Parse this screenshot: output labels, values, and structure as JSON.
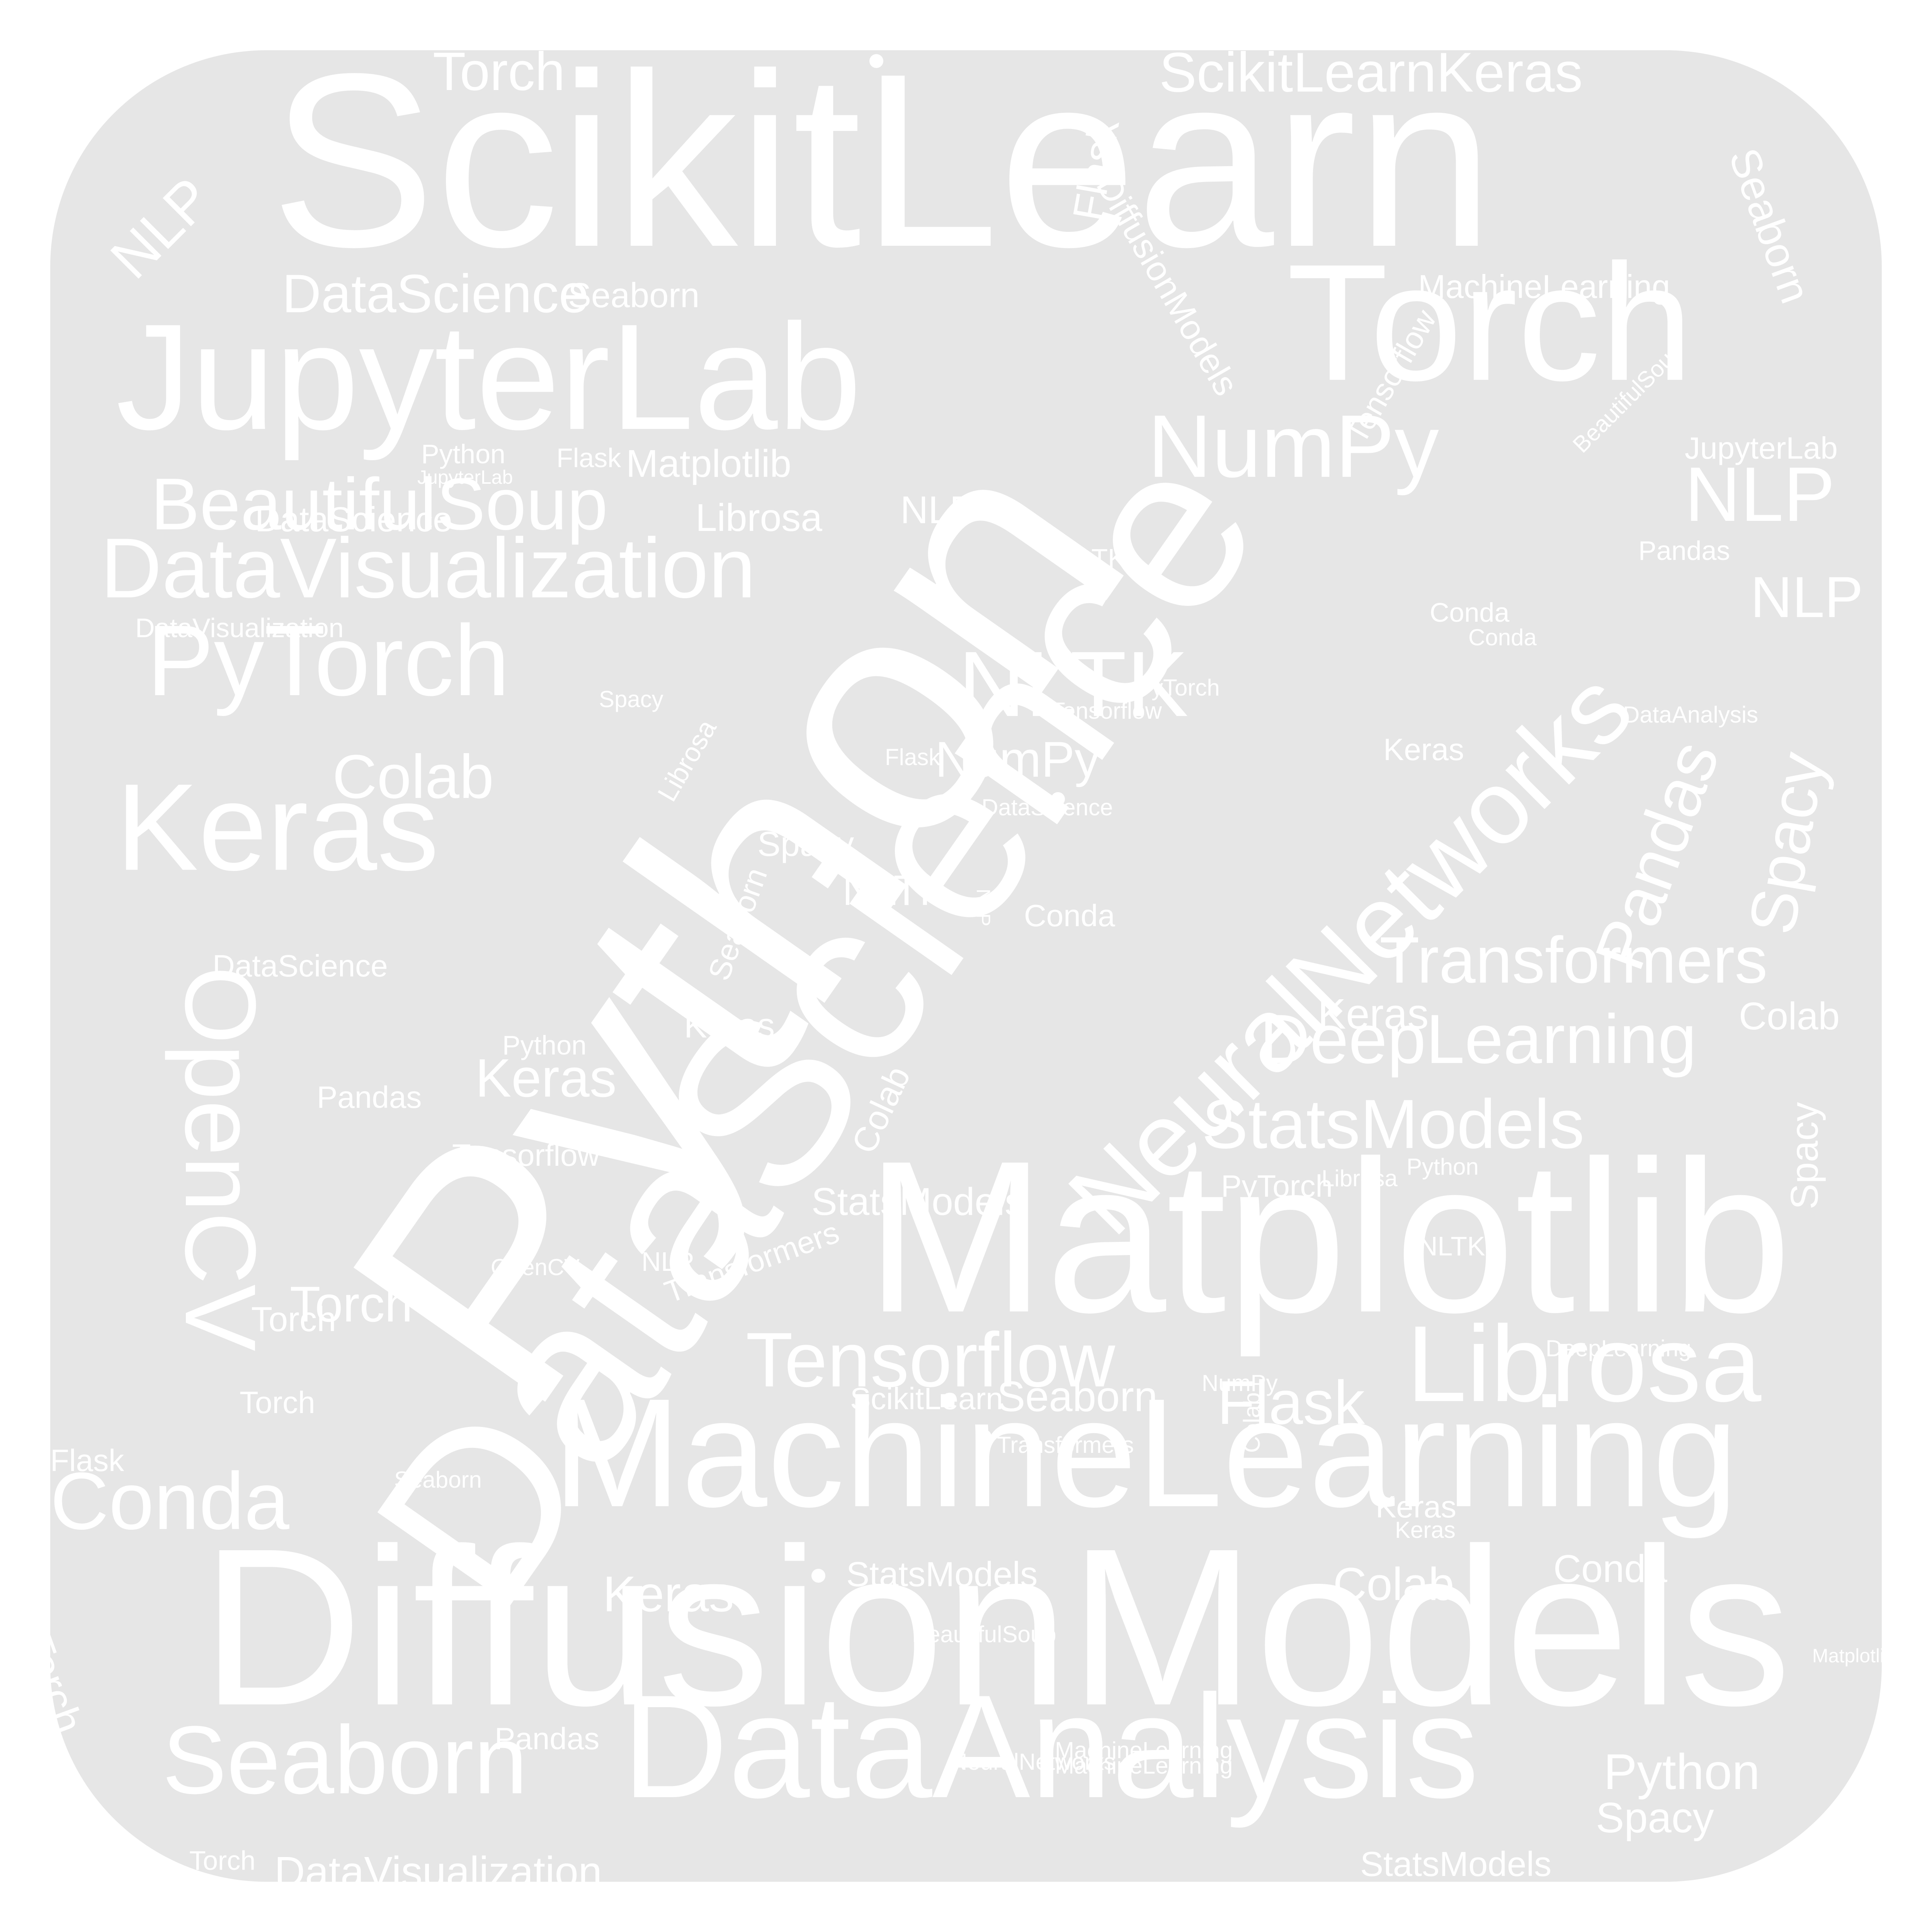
{
  "background_color": "#e6e6e6",
  "text_color": "#ffffff",
  "words": [
    "ScikitLearn",
    "Python",
    "DataScience",
    "DiffusionModels",
    "Matplotlib",
    "MachineLearning",
    "DataAnalysis",
    "Torch",
    "JupyterLab",
    "NeuralNetworks",
    "Keras",
    "PyTorch",
    "OpenCV",
    "DataVisualization",
    "BeautifulSoup",
    "Librosa",
    "Seaborn",
    "Conda",
    "Tensorflow",
    "Pandas",
    "Spacy",
    "NLTK",
    "NumPy",
    "Transformers",
    "DeepLearning",
    "StatsModels",
    "NLP",
    "Colab",
    "Flask",
    "DataScience",
    "Torch",
    "ScikitLearnKeras",
    "Flask",
    "NLP",
    "Seaborn",
    "DiffusionModels",
    "MachineLearning",
    "Tensorflow",
    "JupyterLab",
    "Matplotlib",
    "NLP",
    "NLP",
    "Spacy",
    "Pandas",
    "Transformers",
    "DeepLearning",
    "StatsModels",
    "Colab",
    "Torch",
    "NumPy",
    "NLTK",
    "Keras",
    "Librosa",
    "DataVisualization",
    "Conda",
    "Torch",
    "Seaborn",
    "Python",
    "Spacy",
    "StatsModels",
    "Flask",
    "Colab",
    "Keras",
    "Conda",
    "Torch",
    "DataVisualization",
    "Keras",
    "MachineLearning",
    "Tensorflow",
    "PyTorch",
    "NumPy",
    "Python",
    "DataScience",
    "Spacy",
    "Pandas",
    "Torch",
    "Colab",
    "Keras",
    "ScikitLearn",
    "StatsModels",
    "Seaborn",
    "NLTK",
    "Keras",
    "Pandas",
    "Python",
    "NLTK",
    "BeautifulSoup",
    "Flask",
    "Seaborn",
    "Conda",
    "NLP",
    "Keras",
    "PyTorch",
    "Transformers",
    "DataScience",
    "Matplotlib",
    "Librosa",
    "OpenCV",
    "NeuralNetworks",
    "DataAnalysis",
    "JupyterLab",
    "Tensorflow",
    "Python",
    "Conda",
    "Seaborn",
    "MachineLearning",
    "Torch",
    "Flask",
    "DataScience",
    "Keras",
    "BeautifulSoup",
    "Colab",
    "Spacy",
    "NLP",
    "Librosa"
  ]
}
